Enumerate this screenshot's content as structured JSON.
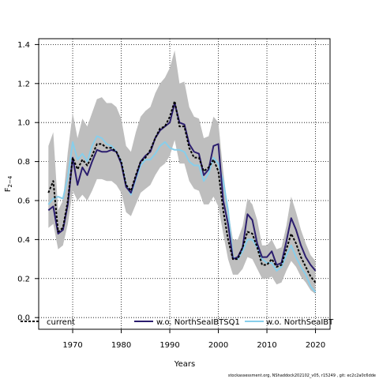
{
  "chart_data": {
    "type": "line",
    "xlabel": "Years",
    "ylabel": "F",
    "ylabel_sub": "2−4",
    "xlim": [
      1963,
      2023
    ],
    "ylim": [
      -0.06,
      1.43
    ],
    "xticks": [
      1970,
      1980,
      1990,
      2000,
      2010,
      2020
    ],
    "yticks": [
      0.0,
      0.2,
      0.4,
      0.6,
      0.8,
      1.0,
      1.2,
      1.4
    ],
    "grid": true,
    "legend_position": "bottom",
    "x": [
      1965,
      1966,
      1967,
      1968,
      1969,
      1970,
      1971,
      1972,
      1973,
      1974,
      1975,
      1976,
      1977,
      1978,
      1979,
      1980,
      1981,
      1982,
      1983,
      1984,
      1985,
      1986,
      1987,
      1988,
      1989,
      1990,
      1991,
      1992,
      1993,
      1994,
      1995,
      1996,
      1997,
      1998,
      1999,
      2000,
      2001,
      2002,
      2003,
      2004,
      2005,
      2006,
      2007,
      2008,
      2009,
      2010,
      2011,
      2012,
      2013,
      2014,
      2015,
      2016,
      2017,
      2018,
      2019,
      2020
    ],
    "series": [
      {
        "name": "current",
        "color": "#000000",
        "style": "dashed",
        "values": [
          0.64,
          0.7,
          0.44,
          0.46,
          0.6,
          0.82,
          0.76,
          0.81,
          0.78,
          0.83,
          0.89,
          0.89,
          0.87,
          0.87,
          0.85,
          0.8,
          0.68,
          0.65,
          0.73,
          0.8,
          0.82,
          0.86,
          0.92,
          0.97,
          0.98,
          1.03,
          1.11,
          0.98,
          0.98,
          0.87,
          0.82,
          0.82,
          0.75,
          0.77,
          0.81,
          0.75,
          0.55,
          0.4,
          0.3,
          0.3,
          0.36,
          0.44,
          0.43,
          0.36,
          0.27,
          0.27,
          0.3,
          0.26,
          0.27,
          0.35,
          0.43,
          0.38,
          0.31,
          0.26,
          0.21,
          0.18
        ]
      },
      {
        "name": "w.o. NorthSeaIBTSQ1",
        "color": "#2b1d6e",
        "style": "solid",
        "values": [
          0.55,
          0.57,
          0.43,
          0.45,
          0.58,
          0.82,
          0.68,
          0.77,
          0.73,
          0.8,
          0.86,
          0.85,
          0.85,
          0.86,
          0.85,
          0.79,
          0.67,
          0.64,
          0.72,
          0.8,
          0.83,
          0.85,
          0.92,
          0.96,
          0.98,
          1.0,
          1.1,
          1.0,
          0.99,
          0.89,
          0.85,
          0.84,
          0.73,
          0.76,
          0.88,
          0.89,
          0.6,
          0.48,
          0.3,
          0.31,
          0.36,
          0.53,
          0.5,
          0.38,
          0.31,
          0.31,
          0.34,
          0.27,
          0.28,
          0.39,
          0.51,
          0.45,
          0.37,
          0.31,
          0.27,
          0.24
        ]
      },
      {
        "name": "w.o. NorthSeaIBT",
        "color": "#87ceeb",
        "style": "solid",
        "values": [
          0.58,
          0.61,
          0.62,
          0.61,
          0.72,
          0.9,
          0.81,
          0.84,
          0.8,
          0.88,
          0.93,
          0.92,
          0.89,
          0.88,
          0.85,
          0.8,
          0.68,
          0.63,
          0.71,
          0.78,
          0.81,
          0.81,
          0.84,
          0.88,
          0.9,
          0.87,
          0.86,
          0.86,
          0.85,
          0.8,
          0.78,
          0.78,
          0.7,
          0.74,
          0.82,
          0.79,
          0.7,
          0.55,
          0.31,
          0.3,
          0.34,
          0.4,
          0.4,
          0.36,
          0.3,
          0.28,
          0.28,
          0.24,
          0.26,
          0.32,
          0.37,
          0.31,
          0.26,
          0.22,
          0.16,
          0.13
        ]
      }
    ],
    "band": {
      "color": "#bebebe",
      "upper": [
        0.88,
        0.95,
        0.55,
        0.6,
        0.85,
        1.05,
        0.92,
        1.02,
        0.98,
        1.05,
        1.12,
        1.13,
        1.1,
        1.1,
        1.08,
        1.02,
        0.88,
        0.85,
        0.95,
        1.03,
        1.06,
        1.08,
        1.15,
        1.2,
        1.23,
        1.28,
        1.37,
        1.2,
        1.21,
        1.08,
        1.03,
        1.02,
        0.92,
        0.93,
        1.03,
        1.0,
        0.75,
        0.55,
        0.4,
        0.4,
        0.47,
        0.61,
        0.58,
        0.5,
        0.37,
        0.37,
        0.4,
        0.35,
        0.36,
        0.47,
        0.62,
        0.54,
        0.45,
        0.38,
        0.32,
        0.29
      ],
      "lower": [
        0.46,
        0.48,
        0.35,
        0.37,
        0.48,
        0.65,
        0.6,
        0.63,
        0.6,
        0.65,
        0.71,
        0.71,
        0.7,
        0.7,
        0.68,
        0.64,
        0.54,
        0.52,
        0.58,
        0.64,
        0.66,
        0.68,
        0.73,
        0.77,
        0.79,
        0.83,
        0.91,
        0.79,
        0.79,
        0.7,
        0.66,
        0.65,
        0.58,
        0.58,
        0.62,
        0.57,
        0.43,
        0.3,
        0.22,
        0.22,
        0.25,
        0.31,
        0.3,
        0.25,
        0.2,
        0.2,
        0.21,
        0.17,
        0.18,
        0.24,
        0.29,
        0.26,
        0.21,
        0.18,
        0.14,
        0.12
      ]
    }
  },
  "footer": "stockassessment.org, NShaddock202102_v05, r15249 , git: ec2c2a0c6dde"
}
